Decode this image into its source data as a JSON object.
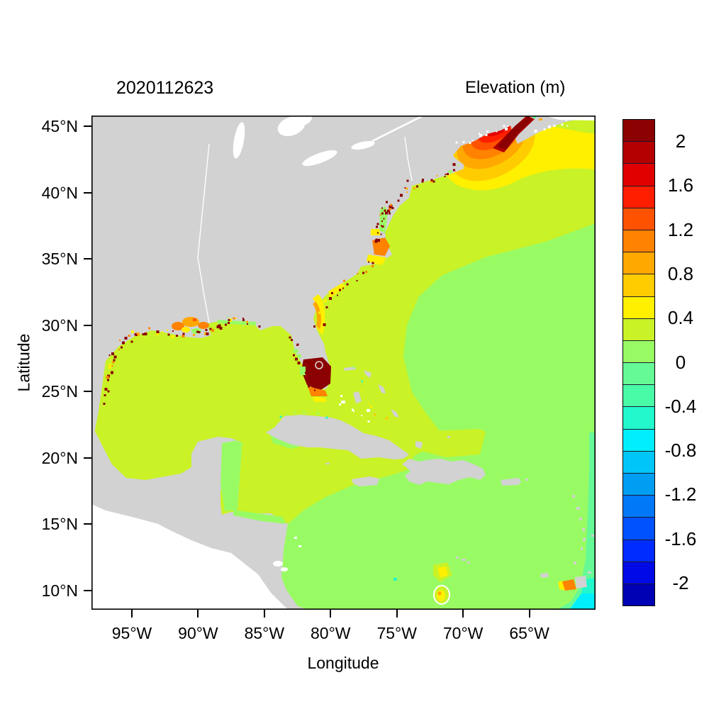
{
  "figure": {
    "date_label": "2020112623",
    "legend_title": "Elevation (m)"
  },
  "axes": {
    "xlabel": "Longitude",
    "ylabel": "Latitude",
    "x_ticks": [
      {
        "label": "95°W",
        "lon_w": 95
      },
      {
        "label": "90°W",
        "lon_w": 90
      },
      {
        "label": "85°W",
        "lon_w": 85
      },
      {
        "label": "80°W",
        "lon_w": 80
      },
      {
        "label": "75°W",
        "lon_w": 75
      },
      {
        "label": "70°W",
        "lon_w": 70
      },
      {
        "label": "65°W",
        "lon_w": 65
      }
    ],
    "y_ticks": [
      {
        "label": "45°N",
        "lat_n": 45
      },
      {
        "label": "40°N",
        "lat_n": 40
      },
      {
        "label": "35°N",
        "lat_n": 35
      },
      {
        "label": "30°N",
        "lat_n": 30
      },
      {
        "label": "25°N",
        "lat_n": 25
      },
      {
        "label": "20°N",
        "lat_n": 20
      },
      {
        "label": "15°N",
        "lat_n": 15
      },
      {
        "label": "10°N",
        "lat_n": 10
      }
    ]
  },
  "colorbar": {
    "tick_labels": [
      "2",
      "1.6",
      "1.2",
      "0.8",
      "0.4",
      "0",
      "-0.4",
      "-0.8",
      "-1.2",
      "-1.6",
      "-2"
    ],
    "bands": [
      {
        "range": "> 2.0",
        "color": "#8B0000"
      },
      {
        "range": "1.8 to 2.0",
        "color": "#B40000"
      },
      {
        "range": "1.6 to 1.8",
        "color": "#E10000"
      },
      {
        "range": "1.4 to 1.6",
        "color": "#FF1E00"
      },
      {
        "range": "1.2 to 1.4",
        "color": "#FF5200"
      },
      {
        "range": "1.0 to 1.2",
        "color": "#FF8200"
      },
      {
        "range": "0.8 to 1.0",
        "color": "#FFA800"
      },
      {
        "range": "0.6 to 0.8",
        "color": "#FFCC00"
      },
      {
        "range": "0.4 to 0.6",
        "color": "#FFF000"
      },
      {
        "range": "0.2 to 0.4",
        "color": "#C9F227"
      },
      {
        "range": "0.0 to 0.2",
        "color": "#99FB64"
      },
      {
        "range": "-0.2 to 0.0",
        "color": "#66FA96"
      },
      {
        "range": "-0.4 to -0.2",
        "color": "#49FAA6"
      },
      {
        "range": "-0.6 to -0.4",
        "color": "#21F8CC"
      },
      {
        "range": "-0.8 to -0.6",
        "color": "#00EEFE"
      },
      {
        "range": "-1.0 to -0.8",
        "color": "#00C6F8"
      },
      {
        "range": "-1.2 to -1.0",
        "color": "#009EF2"
      },
      {
        "range": "-1.4 to -1.2",
        "color": "#0078F8"
      },
      {
        "range": "-1.6 to -1.4",
        "color": "#0052FF"
      },
      {
        "range": "-1.8 to -1.6",
        "color": "#002CFF"
      },
      {
        "range": "-2.0 to -1.8",
        "color": "#000AE6"
      },
      {
        "range": "< -2.0",
        "color": "#0000B4"
      }
    ]
  },
  "colors": {
    "land": "#D2D2D2",
    "background": "#FFFFFF",
    "frame": "#000000"
  },
  "chart_data": {
    "type": "filled_contour_map",
    "title": "2020112623",
    "colorbar_title": "Elevation (m)",
    "units": "m",
    "xlabel": "Longitude",
    "ylabel": "Latitude",
    "lon_range_deg_west": [
      98,
      60
    ],
    "lat_range_deg_north": [
      8.5,
      45.8
    ],
    "contour_interval_m": 0.2,
    "colorbar_ticks": [
      2,
      1.6,
      1.2,
      0.8,
      0.4,
      0,
      -0.4,
      -0.8,
      -1.2,
      -1.6,
      -2
    ],
    "background_elevation_bands": [
      {
        "region": "Gulf of Mexico and NW Atlantic shelf",
        "elevation_m": "0.2 to 0.4"
      },
      {
        "region": "Central Atlantic and Caribbean Sea",
        "elevation_m": "0.0 to 0.2"
      },
      {
        "region": "Eastern domain boundary strip south of 19N",
        "elevation_m": "-0.2 to 0.0"
      }
    ],
    "features": [
      {
        "region": "Bay of Fundy / Gulf of Maine",
        "lon_w": 66.5,
        "lat_n": 44.8,
        "peak_elevation_m": "> 2.0",
        "pattern": "concentric maximum rising from 0.4 to above 2"
      },
      {
        "region": "South Florida / Everglades",
        "lon_w": 80.8,
        "lat_n": 26.2,
        "peak_elevation_m": "> 2.0"
      },
      {
        "region": "Pamlico Sound, North Carolina",
        "lon_w": 76.3,
        "lat_n": 35.2,
        "peak_elevation_m": "1.0 to 1.2"
      },
      {
        "region": "Georgia / NE Florida coast",
        "lon_w": 81.0,
        "lat_n": 30.5,
        "peak_elevation_m": "0.8 to 1.0"
      },
      {
        "region": "Louisiana / Mississippi delta coast",
        "lon_w": 90.5,
        "lat_n": 29.3,
        "peak_elevation_m": "1.0 to 1.4"
      },
      {
        "region": "Gulf of Venezuela / Lake Maracaibo",
        "lon_w": 71.5,
        "lat_n": 10.0,
        "peak_elevation_m": "0.4 to 0.8"
      },
      {
        "region": "Gulf of Paria / Trinidad",
        "lon_w": 62.0,
        "lat_n": 10.3,
        "peak_elevation_m": "1.0 to 1.2"
      },
      {
        "region": "Scattered wet coastal cells along Gulf and US East Coast",
        "peak_elevation_m": "> 2.0",
        "pattern": "speckles"
      },
      {
        "region": "SE corner near Orinoco delta",
        "lon_w": 60.5,
        "lat_n": 9.0,
        "peak_elevation_m": "-0.8 to -0.4"
      }
    ]
  }
}
